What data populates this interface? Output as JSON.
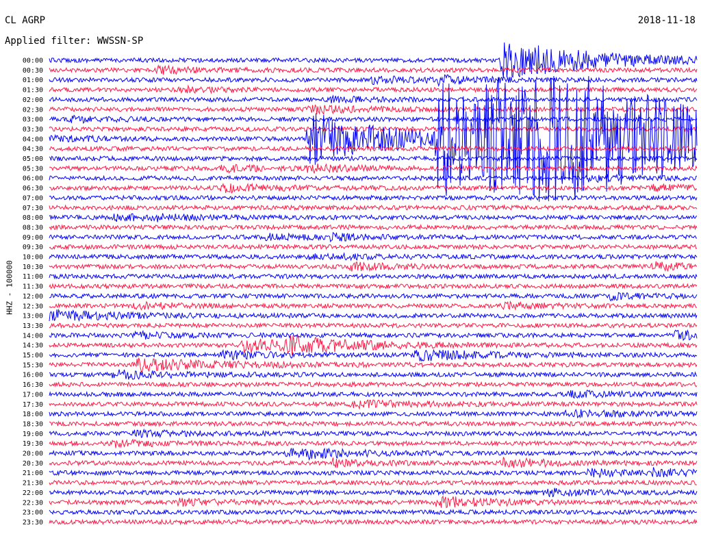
{
  "header": {
    "station": "CL AGRP",
    "date": "2018-11-18",
    "filter": "Applied filter: WWSSN-SP"
  },
  "chart_data": {
    "type": "helicorder",
    "ylabel": "HHZ - 100000",
    "row_minutes": 30,
    "colors": [
      "#0000ff",
      "#ff1744"
    ],
    "times": [
      "00:00",
      "00:30",
      "01:00",
      "01:30",
      "02:00",
      "02:30",
      "03:00",
      "03:30",
      "04:00",
      "04:30",
      "05:00",
      "05:30",
      "06:00",
      "06:30",
      "07:00",
      "07:30",
      "08:00",
      "08:30",
      "09:00",
      "09:30",
      "10:00",
      "10:30",
      "11:00",
      "11:30",
      "12:00",
      "12:30",
      "13:00",
      "13:30",
      "14:00",
      "14:30",
      "15:00",
      "15:30",
      "16:00",
      "16:30",
      "17:00",
      "17:30",
      "18:00",
      "18:30",
      "19:00",
      "19:30",
      "20:00",
      "20:30",
      "21:00",
      "21:30",
      "22:00",
      "22:30",
      "23:00",
      "23:30"
    ],
    "events": [
      {
        "row": 0,
        "minute": 21,
        "amp": 9,
        "decay": 4
      },
      {
        "row": 1,
        "minute": 5,
        "amp": 1.4,
        "decay": 2
      },
      {
        "row": 2,
        "minute": 15,
        "amp": 1.2,
        "decay": 3
      },
      {
        "row": 2,
        "minute": 18,
        "amp": 1.3,
        "decay": 2
      },
      {
        "row": 3,
        "minute": 6,
        "amp": 1.0,
        "decay": 2
      },
      {
        "row": 4,
        "minute": 13,
        "amp": 1.0,
        "decay": 2
      },
      {
        "row": 5,
        "minute": 12,
        "amp": 1.6,
        "decay": 2.5
      },
      {
        "row": 6,
        "minute": 1,
        "amp": 1.1,
        "decay": 2
      },
      {
        "row": 8,
        "minute": 0,
        "amp": 1.2,
        "decay": 2
      },
      {
        "row": 8,
        "minute": 20,
        "amp": 45,
        "decay": 8
      },
      {
        "row": 8,
        "minute": 12,
        "amp": 12,
        "decay": 4
      },
      {
        "row": 8,
        "minute": 18,
        "amp": 25,
        "decay": 4
      },
      {
        "row": 11,
        "minute": 12,
        "amp": 1.5,
        "decay": 2
      },
      {
        "row": 11,
        "minute": 8,
        "amp": 1.3,
        "decay": 2
      },
      {
        "row": 12,
        "minute": 25,
        "amp": 1.2,
        "decay": 2
      },
      {
        "row": 13,
        "minute": 8,
        "amp": 1.5,
        "decay": 2.5
      },
      {
        "row": 13,
        "minute": 28,
        "amp": 1.3,
        "decay": 2
      },
      {
        "row": 16,
        "minute": 3,
        "amp": 1.2,
        "decay": 2
      },
      {
        "row": 16,
        "minute": 5,
        "amp": 1.0,
        "decay": 2
      },
      {
        "row": 18,
        "minute": 10,
        "amp": 1.1,
        "decay": 2
      },
      {
        "row": 18,
        "minute": 13,
        "amp": 1.0,
        "decay": 2
      },
      {
        "row": 20,
        "minute": 12,
        "amp": 1.2,
        "decay": 2.5
      },
      {
        "row": 21,
        "minute": 14,
        "amp": 1.4,
        "decay": 2
      },
      {
        "row": 21,
        "minute": 28,
        "amp": 1.5,
        "decay": 2
      },
      {
        "row": 24,
        "minute": 26,
        "amp": 1.2,
        "decay": 2
      },
      {
        "row": 25,
        "minute": 4,
        "amp": 1.3,
        "decay": 2
      },
      {
        "row": 25,
        "minute": 21,
        "amp": 1.2,
        "decay": 2
      },
      {
        "row": 26,
        "minute": 0,
        "amp": 2.2,
        "decay": 3
      },
      {
        "row": 28,
        "minute": 4,
        "amp": 1.2,
        "decay": 2
      },
      {
        "row": 28,
        "minute": 29,
        "amp": 1.5,
        "decay": 2.5
      },
      {
        "row": 29,
        "minute": 9,
        "amp": 3,
        "decay": 3
      },
      {
        "row": 29,
        "minute": 11,
        "amp": 3,
        "decay": 3
      },
      {
        "row": 30,
        "minute": 8,
        "amp": 1.6,
        "decay": 2.5
      },
      {
        "row": 30,
        "minute": 17,
        "amp": 2.2,
        "decay": 3
      },
      {
        "row": 31,
        "minute": 4,
        "amp": 2.5,
        "decay": 4
      },
      {
        "row": 32,
        "minute": 3,
        "amp": 1.6,
        "decay": 3
      },
      {
        "row": 34,
        "minute": 24,
        "amp": 1.4,
        "decay": 2
      },
      {
        "row": 35,
        "minute": 14,
        "amp": 1.5,
        "decay": 3
      },
      {
        "row": 36,
        "minute": 24,
        "amp": 1.5,
        "decay": 2.5
      },
      {
        "row": 38,
        "minute": 4,
        "amp": 1.2,
        "decay": 2.5
      },
      {
        "row": 39,
        "minute": 3,
        "amp": 1.3,
        "decay": 2
      },
      {
        "row": 40,
        "minute": 11,
        "amp": 1.7,
        "decay": 2
      },
      {
        "row": 40,
        "minute": 12,
        "amp": 1.3,
        "decay": 2
      },
      {
        "row": 41,
        "minute": 13,
        "amp": 1.6,
        "decay": 2
      },
      {
        "row": 41,
        "minute": 21,
        "amp": 1.8,
        "decay": 2.5
      },
      {
        "row": 42,
        "minute": 25,
        "amp": 1.4,
        "decay": 2
      },
      {
        "row": 42,
        "minute": 28,
        "amp": 1.6,
        "decay": 2
      },
      {
        "row": 44,
        "minute": 23,
        "amp": 1.4,
        "decay": 2
      },
      {
        "row": 45,
        "minute": 6,
        "amp": 1.3,
        "decay": 2
      },
      {
        "row": 45,
        "minute": 18,
        "amp": 2.5,
        "decay": 2.5
      }
    ]
  }
}
